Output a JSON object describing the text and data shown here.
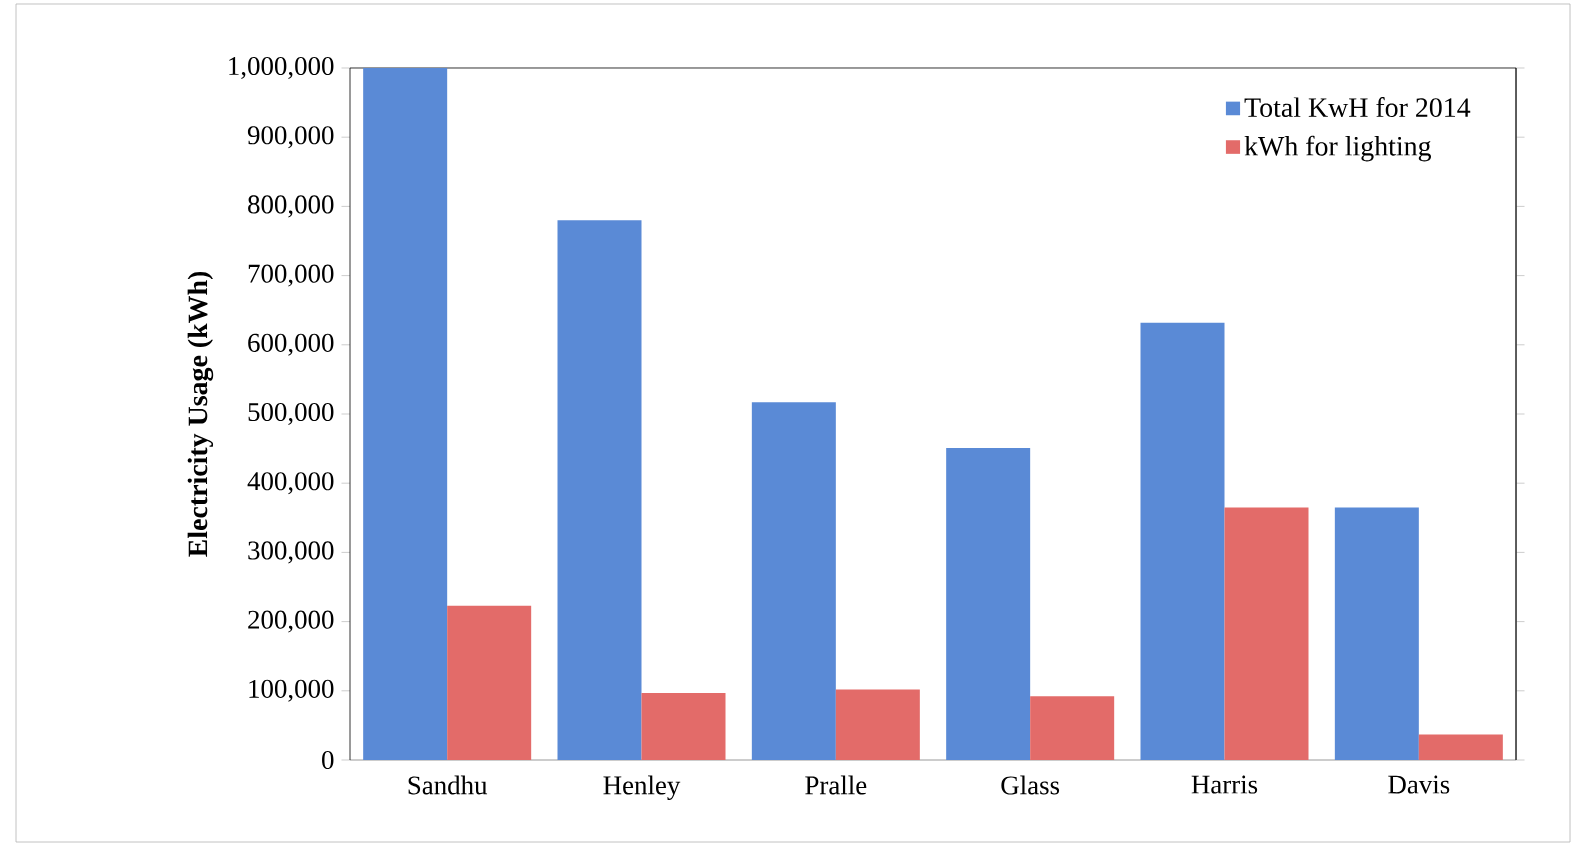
{
  "chart_data": {
    "type": "bar",
    "ylabel": "Electricity Usage (kWh)",
    "categories": [
      "Sandhu",
      "Henley",
      "Pralle",
      "Glass",
      "Harris",
      "Davis"
    ],
    "series": [
      {
        "name": "Total KwH for 2014",
        "color": "#5a8ad6",
        "values": [
          1000000,
          780000,
          517000,
          451000,
          632000,
          365000
        ]
      },
      {
        "name": "kWh for lighting",
        "color": "#e36b69",
        "values": [
          223000,
          97000,
          102000,
          92000,
          365000,
          37000
        ]
      }
    ],
    "ylim": [
      0,
      1000000
    ],
    "yticks": [
      {
        "value": 0,
        "label": "0"
      },
      {
        "value": 100000,
        "label": "100,000"
      },
      {
        "value": 200000,
        "label": "200,000"
      },
      {
        "value": 300000,
        "label": "300,000"
      },
      {
        "value": 400000,
        "label": "400,000"
      },
      {
        "value": 500000,
        "label": "500,000"
      },
      {
        "value": 600000,
        "label": "600,000"
      },
      {
        "value": 700000,
        "label": "700,000"
      },
      {
        "value": 800000,
        "label": "800,000"
      },
      {
        "value": 900000,
        "label": "900,000"
      },
      {
        "value": 1000000,
        "label": "1,000,000"
      }
    ],
    "legend": "top right",
    "grid": false
  }
}
